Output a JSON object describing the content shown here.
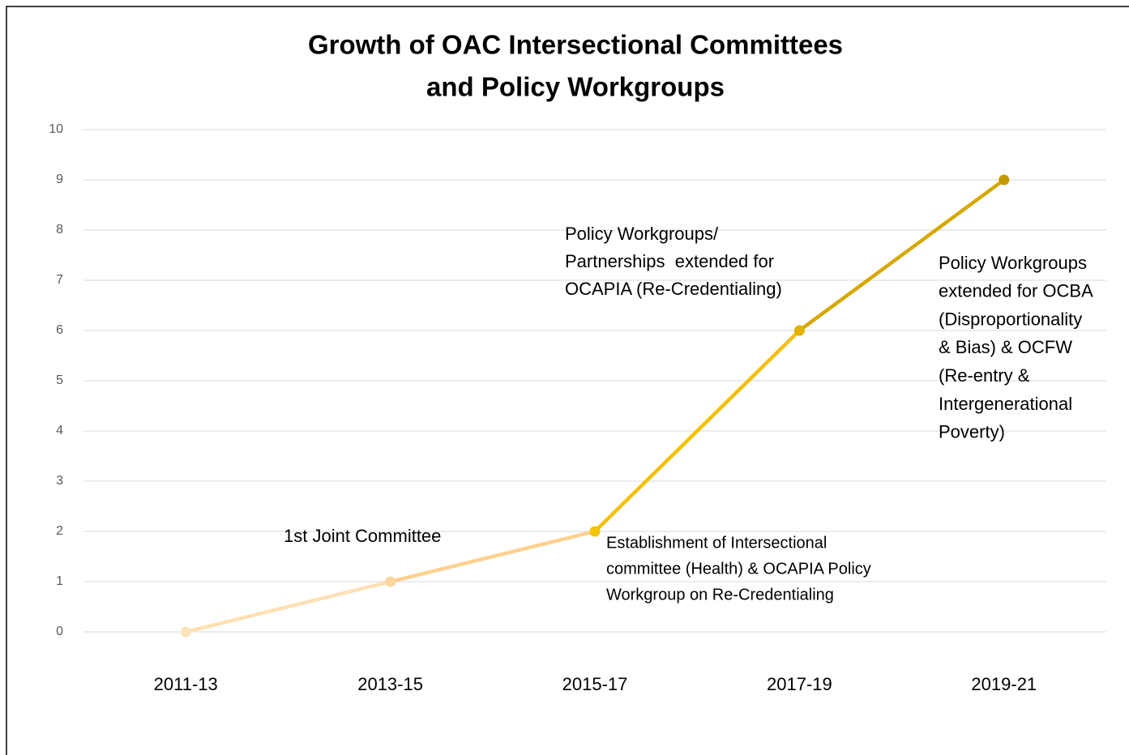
{
  "chart_data": {
    "type": "line",
    "title": [
      "Growth of OAC Intersectional Committees",
      "and Policy Workgroups"
    ],
    "categories": [
      "2011-13",
      "2013-15",
      "2015-17",
      "2017-19",
      "2019-21"
    ],
    "values": [
      0,
      1,
      2,
      6,
      9
    ],
    "point_colors": [
      "#fde3bd",
      "#fcd6a0",
      "#f5c200",
      "#e1b000",
      "#c49a00"
    ],
    "segment_colors": [
      "#fde0b4",
      "#fdd08e",
      "#f5c000",
      "#d6a800"
    ],
    "ylim": [
      0,
      10
    ],
    "yticks": [
      0,
      1,
      2,
      3,
      4,
      5,
      6,
      7,
      8,
      9,
      10
    ],
    "grid": true,
    "annotations": [
      [
        "1st Joint Committee"
      ],
      [
        "Policy Workgroups/",
        "Partnerships  extended for",
        "OCAPIA (Re-Credentialing)"
      ],
      [
        "Establishment of Intersectional",
        "committee (Health) & OCAPIA Policy",
        "Workgroup on Re-Credentialing"
      ],
      [
        "Policy Workgroups",
        "extended for OCBA",
        "(Disproportionality",
        "& Bias) & OCFW",
        "(Re-entry &",
        "Intergenerational",
        "Poverty)"
      ]
    ]
  }
}
